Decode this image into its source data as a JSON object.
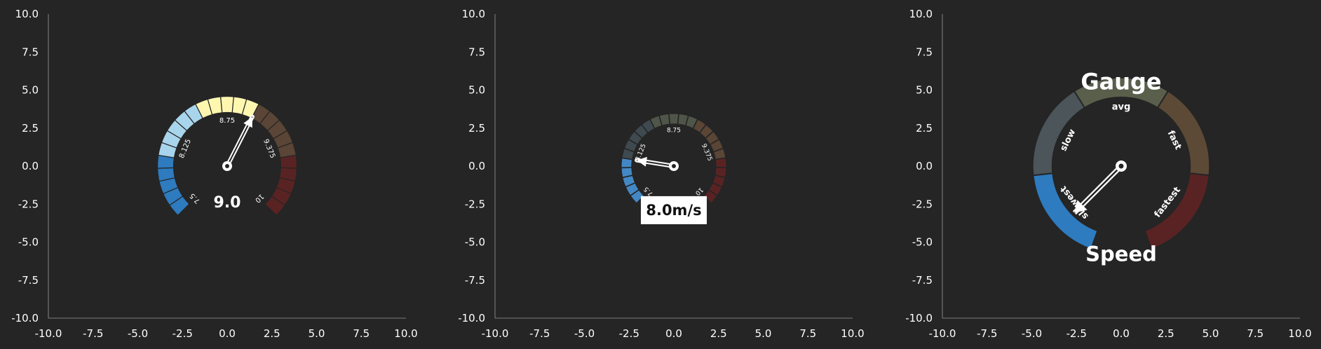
{
  "theme": {
    "background": "#252525",
    "axis_color": "#9a9a9a",
    "text_color": "#ffffff",
    "needle_color": "#ffffff"
  },
  "chart_data": [
    {
      "type": "gauge",
      "xlim": [
        -10,
        10
      ],
      "ylim": [
        -10,
        10
      ],
      "xticks": [
        "-10.0",
        "-7.5",
        "-5.0",
        "-2.5",
        "0.0",
        "2.5",
        "5.0",
        "7.5",
        "10.0"
      ],
      "yticks": [
        "10.0",
        "7.5",
        "5.0",
        "2.5",
        "0.0",
        "-2.5",
        "-5.0",
        "-7.5",
        "-10.0"
      ],
      "scale_min": 7.5,
      "scale_max": 10,
      "value": 9.0,
      "value_label": "9.0",
      "tick_labels": [
        "7.5",
        "8.125",
        "8.75",
        "9.375",
        "10"
      ],
      "zone_colors": [
        "#2e7bbf",
        "#a8d5ec",
        "#fff7b0",
        "#5a4536",
        "#5a2323"
      ],
      "segments_per_zone": 5,
      "value_box": false
    },
    {
      "type": "gauge",
      "xlim": [
        -10,
        10
      ],
      "ylim": [
        -10,
        10
      ],
      "xticks": [
        "-10.0",
        "-7.5",
        "-5.0",
        "-2.5",
        "0.0",
        "2.5",
        "5.0",
        "7.5",
        "10.0"
      ],
      "yticks": [
        "10.0",
        "7.5",
        "5.0",
        "2.5",
        "0.0",
        "-2.5",
        "-5.0",
        "-7.5",
        "-10.0"
      ],
      "scale_min": 7.5,
      "scale_max": 10,
      "value": 8.0,
      "value_label": "8.0m/s",
      "tick_labels": [
        "7.5",
        "8.125",
        "8.75",
        "9.375",
        "10"
      ],
      "zone_colors": [
        "#2e7bbf",
        "#3f4a50",
        "#4f5548",
        "#5a4536",
        "#5a2323"
      ],
      "segments_per_zone": 5,
      "value_box": true
    },
    {
      "type": "gauge",
      "xlim": [
        -10,
        10
      ],
      "ylim": [
        -10,
        10
      ],
      "xticks": [
        "-10.0",
        "-7.5",
        "-5.0",
        "-2.5",
        "0.0",
        "2.5",
        "5.0",
        "7.5",
        "10.0"
      ],
      "yticks": [
        "10.0",
        "7.5",
        "5.0",
        "2.5",
        "0.0",
        "-2.5",
        "-5.0",
        "-7.5",
        "-10.0"
      ],
      "title": "Gauge",
      "bottom_label": "Speed",
      "zone_labels": [
        "slowest",
        "slow",
        "avg",
        "fast",
        "fastest"
      ],
      "zone_colors": [
        "#2e7bbf",
        "#4b555a",
        "#5a5f4c",
        "#5c4a37",
        "#5a2323"
      ],
      "value_angle_deg": 225
    }
  ]
}
